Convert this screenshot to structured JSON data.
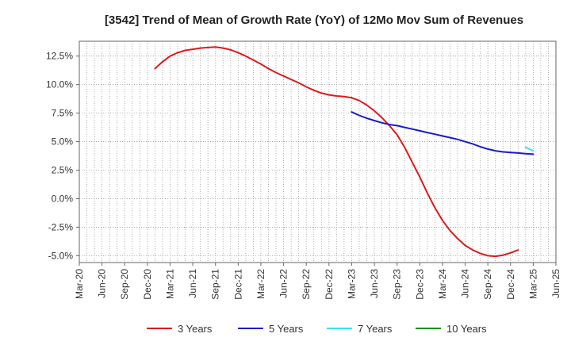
{
  "chart_data": {
    "type": "line",
    "title": "[3542]  Trend of Mean of Growth Rate (YoY) of 12Mo Mov Sum of Revenues",
    "xlabel": "",
    "ylabel": "",
    "x_ticks": [
      "Mar-20",
      "Jun-20",
      "Sep-20",
      "Dec-20",
      "Mar-21",
      "Jun-21",
      "Sep-21",
      "Dec-21",
      "Mar-22",
      "Jun-22",
      "Sep-22",
      "Dec-22",
      "Mar-23",
      "Jun-23",
      "Sep-23",
      "Dec-23",
      "Mar-24",
      "Jun-24",
      "Sep-24",
      "Dec-24",
      "Mar-25",
      "Jun-25"
    ],
    "y_ticks": [
      "12.5%",
      "10.0%",
      "7.5%",
      "5.0%",
      "2.5%",
      "0.0%",
      "-2.5%",
      "-5.0%"
    ],
    "y_tick_values": [
      12.5,
      10.0,
      7.5,
      5.0,
      2.5,
      0.0,
      -2.5,
      -5.0
    ],
    "ylim": [
      -5.6,
      13.8
    ],
    "grid": true,
    "legend_position": "bottom",
    "series": [
      {
        "name": "3 Years",
        "color": "#e0191b",
        "points": [
          [
            "Jan-21",
            11.4
          ],
          [
            "Feb-21",
            12.0
          ],
          [
            "Mar-21",
            12.5
          ],
          [
            "Apr-21",
            12.8
          ],
          [
            "May-21",
            13.0
          ],
          [
            "Jun-21",
            13.1
          ],
          [
            "Jul-21",
            13.2
          ],
          [
            "Aug-21",
            13.25
          ],
          [
            "Sep-21",
            13.3
          ],
          [
            "Oct-21",
            13.2
          ],
          [
            "Nov-21",
            13.05
          ],
          [
            "Dec-21",
            12.8
          ],
          [
            "Jan-22",
            12.5
          ],
          [
            "Feb-22",
            12.15
          ],
          [
            "Mar-22",
            11.8
          ],
          [
            "Apr-22",
            11.4
          ],
          [
            "May-22",
            11.05
          ],
          [
            "Jun-22",
            10.75
          ],
          [
            "Jul-22",
            10.45
          ],
          [
            "Aug-22",
            10.15
          ],
          [
            "Sep-22",
            9.8
          ],
          [
            "Oct-22",
            9.5
          ],
          [
            "Nov-22",
            9.25
          ],
          [
            "Dec-22",
            9.1
          ],
          [
            "Jan-23",
            9.0
          ],
          [
            "Feb-23",
            8.95
          ],
          [
            "Mar-23",
            8.85
          ],
          [
            "Apr-23",
            8.6
          ],
          [
            "May-23",
            8.2
          ],
          [
            "Jun-23",
            7.7
          ],
          [
            "Jul-23",
            7.1
          ],
          [
            "Aug-23",
            6.4
          ],
          [
            "Sep-23",
            5.6
          ],
          [
            "Oct-23",
            4.5
          ],
          [
            "Nov-23",
            3.2
          ],
          [
            "Dec-23",
            1.9
          ],
          [
            "Jan-24",
            0.5
          ],
          [
            "Feb-24",
            -0.8
          ],
          [
            "Mar-24",
            -1.9
          ],
          [
            "Apr-24",
            -2.8
          ],
          [
            "May-24",
            -3.5
          ],
          [
            "Jun-24",
            -4.1
          ],
          [
            "Jul-24",
            -4.5
          ],
          [
            "Aug-24",
            -4.8
          ],
          [
            "Sep-24",
            -5.0
          ],
          [
            "Oct-24",
            -5.05
          ],
          [
            "Nov-24",
            -4.95
          ],
          [
            "Dec-24",
            -4.75
          ],
          [
            "Jan-25",
            -4.5
          ]
        ]
      },
      {
        "name": "5 Years",
        "color": "#1a1acd",
        "points": [
          [
            "Mar-23",
            7.6
          ],
          [
            "Apr-23",
            7.3
          ],
          [
            "May-23",
            7.05
          ],
          [
            "Jun-23",
            6.85
          ],
          [
            "Jul-23",
            6.65
          ],
          [
            "Aug-23",
            6.5
          ],
          [
            "Sep-23",
            6.4
          ],
          [
            "Oct-23",
            6.25
          ],
          [
            "Nov-23",
            6.1
          ],
          [
            "Dec-23",
            5.95
          ],
          [
            "Jan-24",
            5.8
          ],
          [
            "Feb-24",
            5.65
          ],
          [
            "Mar-24",
            5.5
          ],
          [
            "Apr-24",
            5.35
          ],
          [
            "May-24",
            5.2
          ],
          [
            "Jun-24",
            5.0
          ],
          [
            "Jul-24",
            4.8
          ],
          [
            "Aug-24",
            4.55
          ],
          [
            "Sep-24",
            4.35
          ],
          [
            "Oct-24",
            4.2
          ],
          [
            "Nov-24",
            4.1
          ],
          [
            "Dec-24",
            4.05
          ],
          [
            "Jan-25",
            4.0
          ],
          [
            "Feb-25",
            3.95
          ],
          [
            "Mar-25",
            3.9
          ]
        ]
      },
      {
        "name": "7 Years",
        "color": "#33e6f0",
        "points": [
          [
            "Feb-25",
            4.5
          ],
          [
            "Mar-25",
            4.2
          ]
        ]
      },
      {
        "name": "10 Years",
        "color": "#228b22",
        "points": []
      }
    ]
  }
}
